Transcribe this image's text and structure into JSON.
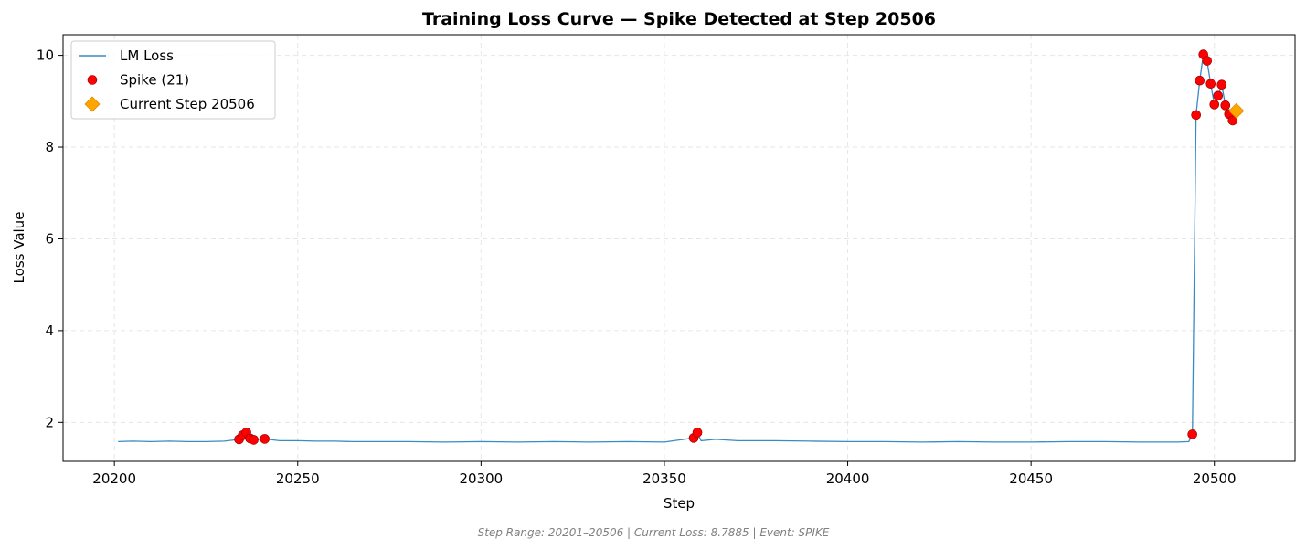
{
  "chart_data": {
    "type": "line",
    "title": "Training Loss Curve — Spike Detected at Step 20506",
    "xlabel": "Step",
    "ylabel": "Loss Value",
    "xlim": [
      20186,
      20522
    ],
    "ylim": [
      1.15,
      10.45
    ],
    "xticks": [
      20200,
      20250,
      20300,
      20350,
      20400,
      20450,
      20500
    ],
    "yticks": [
      2,
      4,
      6,
      8,
      10
    ],
    "grid": true,
    "legend_position": "top-left",
    "footnote": "Step Range: 20201–20506 | Current Loss: 8.7885 | Event: SPIKE",
    "series": [
      {
        "name": "LM Loss",
        "kind": "line",
        "color": "#3a8bc4",
        "x": [
          20201,
          20205,
          20210,
          20215,
          20220,
          20225,
          20230,
          20234,
          20235,
          20236,
          20237,
          20238,
          20241,
          20245,
          20250,
          20255,
          20260,
          20265,
          20270,
          20280,
          20290,
          20300,
          20310,
          20320,
          20330,
          20340,
          20350,
          20358,
          20359,
          20360,
          20364,
          20370,
          20380,
          20390,
          20400,
          20410,
          20420,
          20430,
          20440,
          20450,
          20460,
          20470,
          20480,
          20490,
          20493,
          20494,
          20495,
          20496,
          20497,
          20498,
          20499,
          20500,
          20501,
          20502,
          20503,
          20504,
          20505,
          20506
        ],
        "y": [
          1.58,
          1.59,
          1.58,
          1.59,
          1.58,
          1.58,
          1.59,
          1.63,
          1.72,
          1.78,
          1.65,
          1.62,
          1.64,
          1.6,
          1.6,
          1.59,
          1.59,
          1.58,
          1.58,
          1.58,
          1.57,
          1.58,
          1.57,
          1.58,
          1.57,
          1.58,
          1.57,
          1.66,
          1.78,
          1.6,
          1.63,
          1.6,
          1.6,
          1.59,
          1.58,
          1.58,
          1.57,
          1.58,
          1.57,
          1.57,
          1.58,
          1.58,
          1.57,
          1.57,
          1.58,
          1.74,
          8.7,
          9.45,
          10.02,
          9.88,
          9.38,
          8.93,
          9.12,
          9.36,
          8.91,
          8.72,
          8.58,
          8.79
        ]
      },
      {
        "name": "Spike (21)",
        "kind": "scatter",
        "color": "#ff0000",
        "x": [
          20234,
          20235,
          20236,
          20237,
          20238,
          20241,
          20358,
          20359,
          20494,
          20495,
          20496,
          20497,
          20498,
          20499,
          20500,
          20501,
          20502,
          20503,
          20504,
          20505
        ],
        "y": [
          1.63,
          1.72,
          1.78,
          1.65,
          1.62,
          1.64,
          1.66,
          1.78,
          1.74,
          8.7,
          9.45,
          10.02,
          9.88,
          9.38,
          8.93,
          9.12,
          9.36,
          8.91,
          8.72,
          8.58
        ]
      },
      {
        "name": "Current Step 20506",
        "kind": "marker",
        "color": "#ffa500",
        "x": [
          20506
        ],
        "y": [
          8.79
        ]
      }
    ]
  }
}
